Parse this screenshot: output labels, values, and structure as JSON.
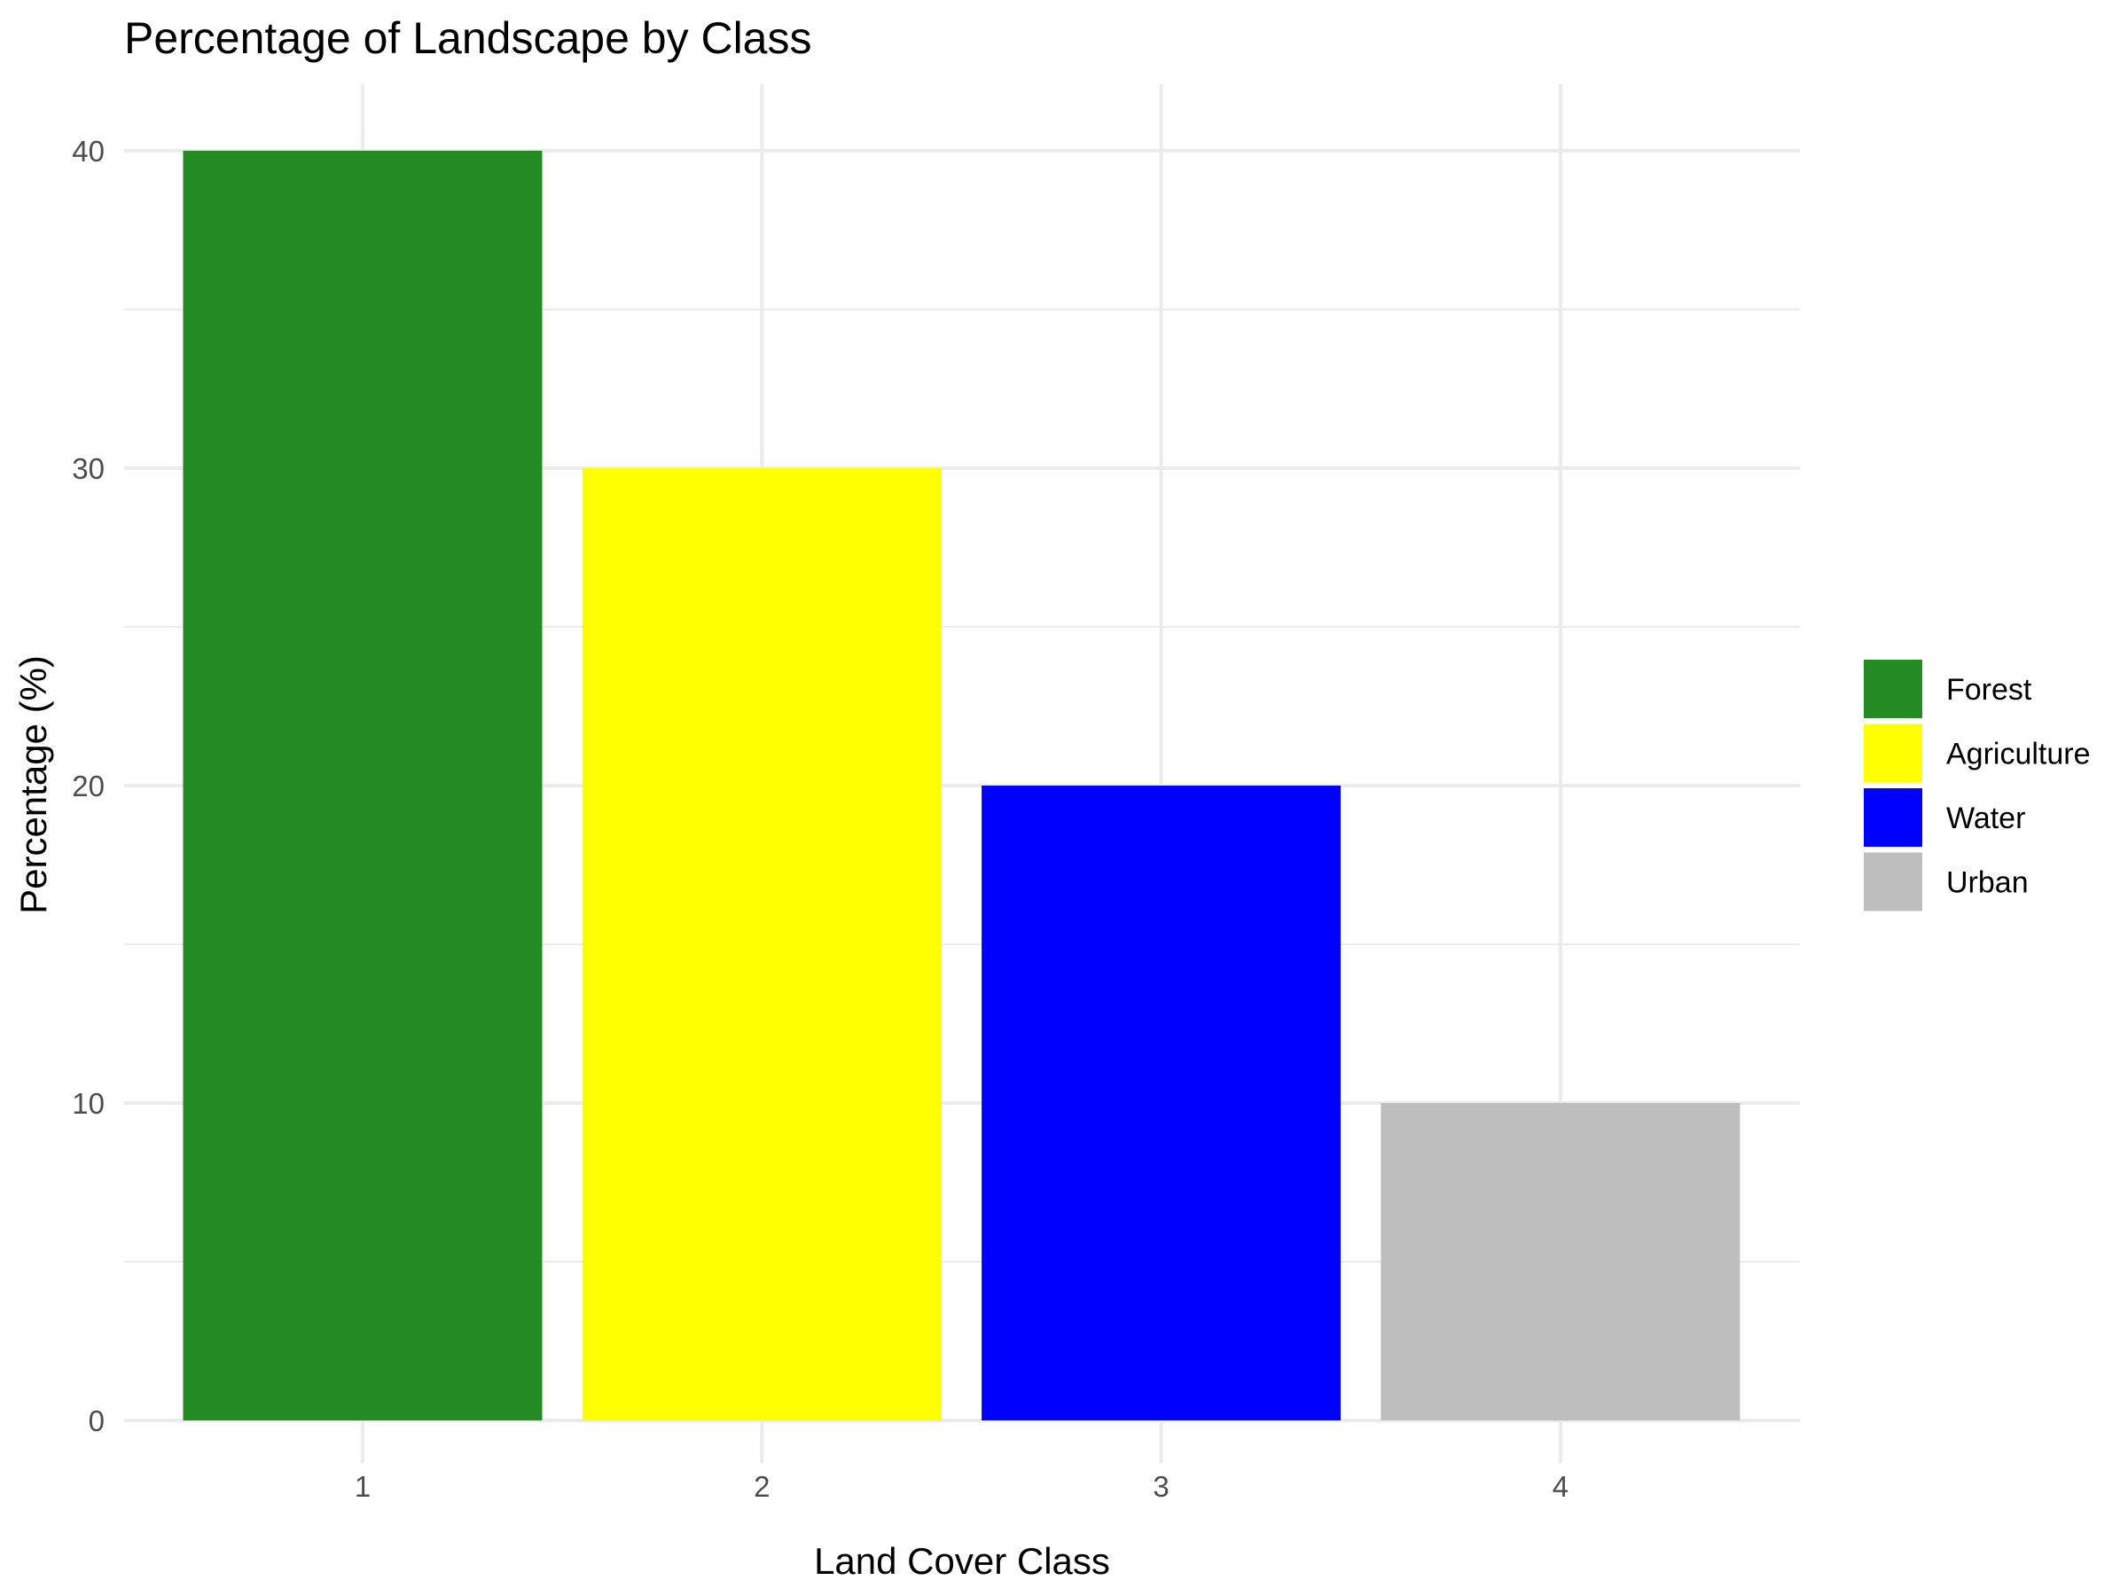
{
  "chart_data": {
    "type": "bar",
    "title": "Percentage of Landscape by Class",
    "xlabel": "Land Cover Class",
    "ylabel": "Percentage (%)",
    "categories": [
      "1",
      "2",
      "3",
      "4"
    ],
    "values": [
      40,
      30,
      20,
      10
    ],
    "bar_labels": [
      "Forest",
      "Agriculture",
      "Water",
      "Urban"
    ],
    "colors": [
      "#228B22",
      "#FFFF00",
      "#0000FF",
      "#BEBEBE"
    ],
    "ylim": [
      0,
      40
    ],
    "yticks": [
      0,
      10,
      20,
      30,
      40
    ],
    "grid": true,
    "legend": {
      "position": "right",
      "entries": [
        "Forest",
        "Agriculture",
        "Water",
        "Urban"
      ]
    }
  }
}
